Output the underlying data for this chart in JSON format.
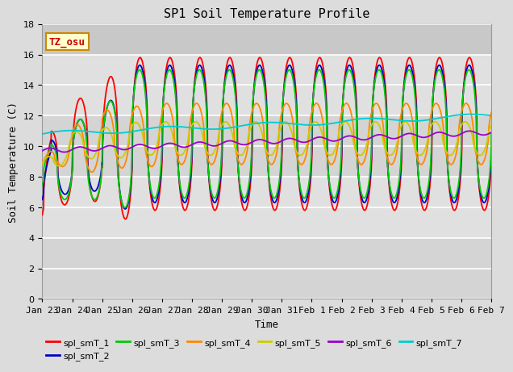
{
  "title": "SP1 Soil Temperature Profile",
  "xlabel": "Time",
  "ylabel": "Soil Temperature (C)",
  "ylim": [
    0,
    18
  ],
  "yticks": [
    0,
    2,
    4,
    6,
    8,
    10,
    12,
    14,
    16,
    18
  ],
  "series_colors": {
    "spl_smT_1": "#FF0000",
    "spl_smT_2": "#0000CC",
    "spl_smT_3": "#00CC00",
    "spl_smT_4": "#FF8800",
    "spl_smT_5": "#CCCC00",
    "spl_smT_6": "#9900CC",
    "spl_smT_7": "#00CCCC"
  },
  "day_labels": [
    "Jan 23",
    "Jan 24",
    "Jan 25",
    "Jan 26",
    "Jan 27",
    "Jan 28",
    "Jan 29",
    "Jan 30",
    "Jan 31",
    "Feb 1",
    "Feb 2",
    "Feb 3",
    "Feb 4",
    "Feb 5",
    "Feb 6",
    "Feb 7"
  ],
  "annotation_text": "TZ_osu",
  "annotation_color": "#CC0000",
  "annotation_bg": "#FFFFCC",
  "annotation_border": "#CC8800",
  "bg_bands": [
    [
      0,
      4,
      "#D4D4D4"
    ],
    [
      4,
      8,
      "#E0E0E0"
    ],
    [
      8,
      12,
      "#D4D4D4"
    ],
    [
      12,
      16,
      "#E0E0E0"
    ]
  ],
  "title_fontsize": 11,
  "label_fontsize": 9,
  "tick_fontsize": 8
}
